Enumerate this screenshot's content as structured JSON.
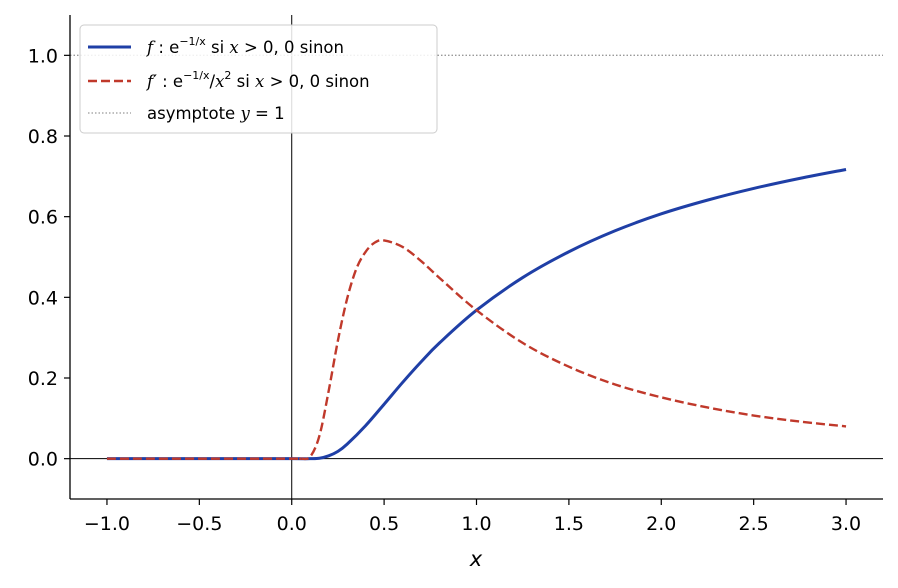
{
  "chart_data": {
    "type": "line",
    "xlabel": "x",
    "ylabel": "",
    "title": "",
    "xlim": [
      -1.2,
      3.2
    ],
    "ylim": [
      -0.1,
      1.1
    ],
    "x_ticks": [
      -1.0,
      -0.5,
      0.0,
      0.5,
      1.0,
      1.5,
      2.0,
      2.5,
      3.0
    ],
    "x_tick_labels": [
      "−1.0",
      "−0.5",
      "0.0",
      "0.5",
      "1.0",
      "1.5",
      "2.0",
      "2.5",
      "3.0"
    ],
    "y_ticks": [
      0.0,
      0.2,
      0.4,
      0.6,
      0.8,
      1.0
    ],
    "y_tick_labels": [
      "0.0",
      "0.2",
      "0.4",
      "0.6",
      "0.8",
      "1.0"
    ],
    "grid": false,
    "legend_position": "top-left",
    "reference_lines": [
      {
        "orientation": "horizontal",
        "value": 0,
        "color": "#000000"
      },
      {
        "orientation": "vertical",
        "value": 0,
        "color": "#000000"
      }
    ],
    "series": [
      {
        "name": "f : e^{-1/x} si x > 0, 0 sinon",
        "style": "solid",
        "color": "#1f3fa6",
        "x": [
          -1.0,
          -0.5,
          0.0,
          0.1,
          0.15,
          0.2,
          0.25,
          0.3,
          0.4,
          0.5,
          0.6,
          0.7,
          0.8,
          1.0,
          1.25,
          1.5,
          1.75,
          2.0,
          2.25,
          2.5,
          2.75,
          3.0
        ],
        "y": [
          0.0,
          0.0,
          0.0,
          0.0,
          0.001,
          0.007,
          0.018,
          0.036,
          0.082,
          0.135,
          0.189,
          0.24,
          0.287,
          0.368,
          0.449,
          0.513,
          0.565,
          0.607,
          0.641,
          0.67,
          0.695,
          0.717
        ]
      },
      {
        "name": "f′ : e^{-1/x}/x² si x > 0, 0 sinon",
        "style": "dashed",
        "color": "#c0392b",
        "x": [
          -1.0,
          -0.5,
          0.0,
          0.05,
          0.1,
          0.15,
          0.2,
          0.25,
          0.3,
          0.35,
          0.4,
          0.45,
          0.5,
          0.6,
          0.7,
          0.8,
          1.0,
          1.25,
          1.5,
          1.75,
          2.0,
          2.25,
          2.5,
          2.75,
          3.0
        ],
        "y": [
          0.0,
          0.0,
          0.0,
          0.0,
          0.005,
          0.057,
          0.168,
          0.293,
          0.397,
          0.471,
          0.513,
          0.536,
          0.541,
          0.525,
          0.49,
          0.448,
          0.368,
          0.287,
          0.228,
          0.184,
          0.152,
          0.127,
          0.107,
          0.092,
          0.08
        ]
      },
      {
        "name": "asymptote y = 1",
        "style": "dotted",
        "color": "#999999",
        "x": [
          -1.2,
          3.2
        ],
        "y": [
          1.0,
          1.0
        ]
      }
    ]
  },
  "legend": {
    "f_name": "f",
    "f_sep": " : e",
    "f_exp": "−1/x",
    "f_rest_1": " si ",
    "f_rest_var": "x",
    "f_rest_2": " > 0, 0 sinon",
    "fp_name": "f′",
    "fp_sep": " : e",
    "fp_exp": "−1/x",
    "fp_div": "/",
    "fp_var": "x",
    "fp_pow": "2",
    "fp_rest_1": " si ",
    "fp_rest_var": "x",
    "fp_rest_2": " > 0, 0 sinon",
    "asym_1": "asymptote ",
    "asym_var": "y",
    "asym_2": " = 1"
  }
}
